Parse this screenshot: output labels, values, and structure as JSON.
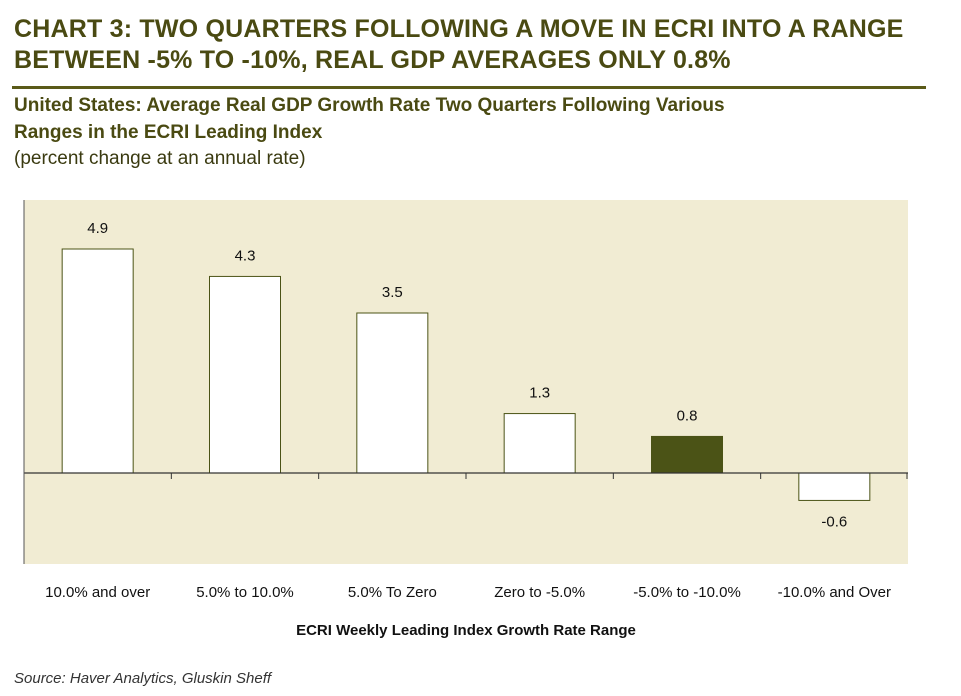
{
  "heading": {
    "line1": "CHART 3: TWO QUARTERS FOLLOWING A MOVE IN ECRI INTO A RANGE",
    "line2": "BETWEEN -5% TO -10%, REAL GDP AVERAGES ONLY 0.8%"
  },
  "subtitle": {
    "line1": "United States: Average Real GDP Growth Rate Two Quarters Following Various",
    "line2": "Ranges in the ECRI Leading Index",
    "units": "(percent change at an annual rate)"
  },
  "chart_data": {
    "type": "bar",
    "categories": [
      "10.0% and over",
      "5.0% to 10.0%",
      "5.0% To Zero",
      "Zero to -5.0%",
      "-5.0% to -10.0%",
      "-10.0% and Over"
    ],
    "values": [
      4.9,
      4.3,
      3.5,
      1.3,
      0.8,
      -0.6
    ],
    "data_labels": [
      "4.9",
      "4.3",
      "3.5",
      "1.3",
      "0.8",
      "-0.6"
    ],
    "highlight_index": 4,
    "title": "United States: Average Real GDP Growth Rate Two Quarters Following Various Ranges in the ECRI Leading Index",
    "xlabel": "ECRI Weekly Leading Index Growth Rate Range",
    "ylabel": "",
    "ylim": [
      -2,
      6
    ],
    "grid": false,
    "colors": {
      "plot_background": "#f1ecd3",
      "bar_fill": "#ffffff",
      "bar_stroke": "#4b5316",
      "highlight_fill": "#4b5316",
      "axis": "#333333"
    }
  },
  "source": "Source: Haver Analytics, Gluskin Sheff"
}
